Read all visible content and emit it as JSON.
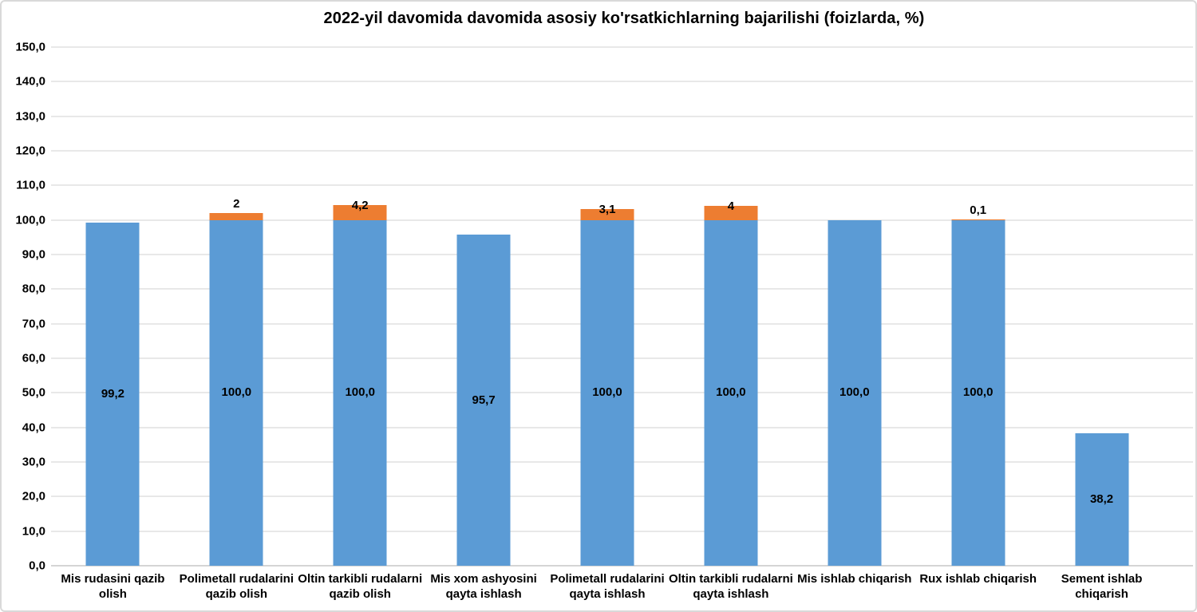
{
  "chart_data": {
    "type": "bar",
    "stacked": true,
    "title": "2022-yil davomida davomida asosiy ko'rsatkichlarning bajarilishi (foizlarda, %)",
    "categories": [
      "Mis rudasini qazib olish",
      "Polimetall rudalarini qazib olish",
      "Oltin tarkibli rudalarni qazib olish",
      "Mis xom ashyosini qayta ishlash",
      "Polimetall rudalarini qayta ishlash",
      "Oltin tarkibli rudalarni qayta ishlash",
      "Mis ishlab chiqarish",
      "Rux ishlab chiqarish",
      "Sement ishlab chiqarish"
    ],
    "category_label_lines": [
      [
        "Mis rudasini qazib",
        "olish"
      ],
      [
        "Polimetall rudalarini",
        "qazib olish"
      ],
      [
        "Oltin tarkibli rudalarni",
        "qazib olish"
      ],
      [
        "Mis xom ashyosini",
        "qayta ishlash"
      ],
      [
        "Polimetall rudalarini",
        "qayta ishlash"
      ],
      [
        "Oltin tarkibli rudalarni",
        "qayta ishlash"
      ],
      [
        "Mis ishlab chiqarish"
      ],
      [
        "Rux ishlab chiqarish"
      ],
      [
        "Sement ishlab",
        "chiqarish"
      ]
    ],
    "series": [
      {
        "name": "series-1",
        "color": "#5B9BD5",
        "values": [
          99.2,
          100.0,
          100.0,
          95.7,
          100.0,
          100.0,
          100.0,
          100.0,
          38.2
        ],
        "data_labels": [
          "99,2",
          "100,0",
          "100,0",
          "95,7",
          "100,0",
          "100,0",
          "100,0",
          "100,0",
          "38,2"
        ]
      },
      {
        "name": "series-2",
        "color": "#ED7D31",
        "values": [
          0,
          2,
          4.2,
          0,
          3.1,
          4,
          0,
          0.1,
          0
        ],
        "data_labels": [
          "",
          "2",
          "4,2",
          "",
          "3,1",
          "4",
          "",
          "0,1",
          ""
        ]
      }
    ],
    "y_axis": {
      "min": 0,
      "max": 150,
      "step": 10,
      "tick_labels": [
        "0,0",
        "10,0",
        "20,0",
        "30,0",
        "40,0",
        "50,0",
        "60,0",
        "70,0",
        "80,0",
        "90,0",
        "100,0",
        "110,0",
        "120,0",
        "130,0",
        "140,0",
        "150,0"
      ]
    },
    "legend": "none",
    "grid": true,
    "colors": {
      "gridline": "#E8E8E8",
      "axis_line": "#D5D5D5",
      "text": "#000000",
      "frame_border": "#D9D9D9",
      "background": "#FFFFFF"
    }
  }
}
